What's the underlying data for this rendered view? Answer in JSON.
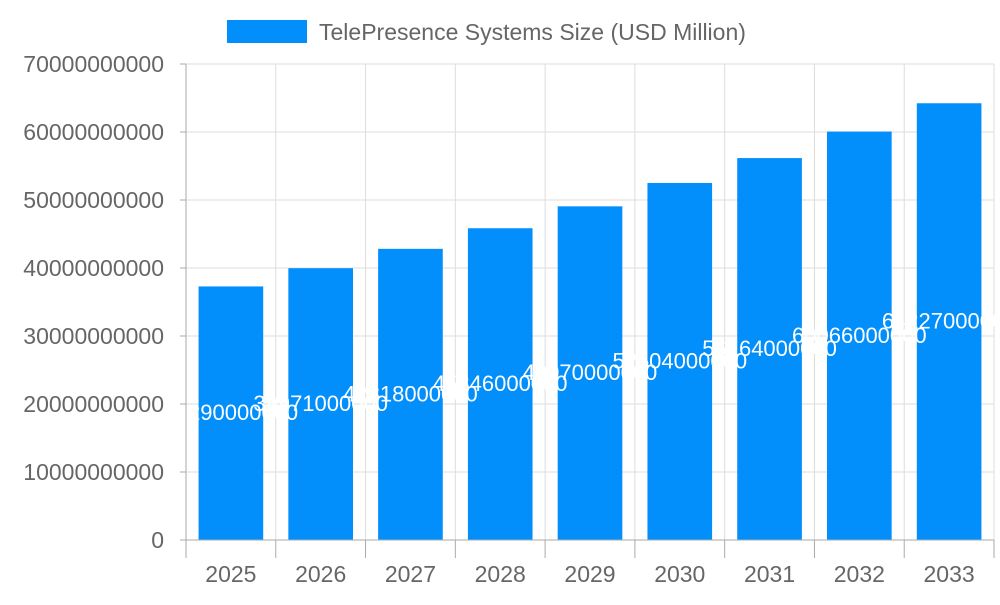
{
  "chart_data": {
    "type": "bar",
    "title": "",
    "xlabel": "",
    "ylabel": "",
    "categories": [
      "2025",
      "2026",
      "2027",
      "2028",
      "2029",
      "2030",
      "2031",
      "2032",
      "2033"
    ],
    "series": [
      {
        "name": "TelePresence Systems Size (USD Million)",
        "values": [
          37290000000,
          39971000000,
          42818000000,
          45846000000,
          49070000000,
          52504000000,
          56164000000,
          60066000000,
          64227000000
        ],
        "color": "#028ffb"
      }
    ],
    "ylim": [
      0,
      70000000000
    ],
    "yticks": [
      "0",
      "10000000000",
      "20000000000",
      "30000000000",
      "40000000000",
      "50000000000",
      "60000000000",
      "70000000000"
    ],
    "grid": true,
    "legend": "top",
    "data_labels": true
  }
}
